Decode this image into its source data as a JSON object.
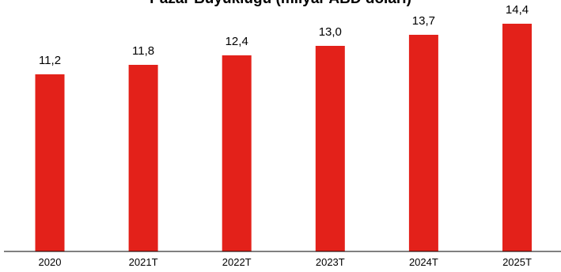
{
  "chart_data": {
    "type": "bar",
    "title": "Pazar Büyüklüğü (milyar ABD doları)",
    "xlabel": "",
    "ylabel": "",
    "categories": [
      "2020",
      "2021T",
      "2022T",
      "2023T",
      "2024T",
      "2025T"
    ],
    "values": [
      11.2,
      11.8,
      12.4,
      13.0,
      13.7,
      14.4
    ],
    "value_labels": [
      "11,2",
      "11,8",
      "12,4",
      "13,0",
      "13,7",
      "14,4"
    ],
    "ylim": [
      0,
      14.4
    ],
    "grid": false,
    "legend": "none",
    "bar_color": "#e3211a",
    "axis_color": "#000000"
  }
}
